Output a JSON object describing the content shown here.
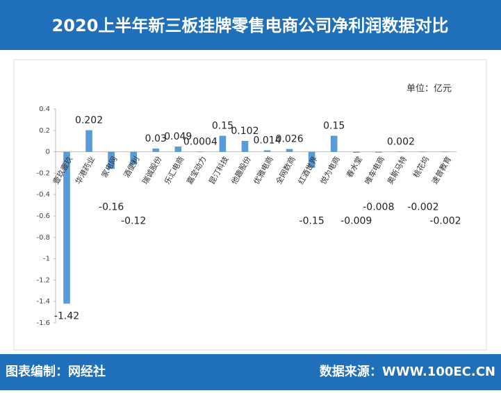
{
  "header": {
    "title": "2020上半年新三板挂牌零售电商公司净利润数据对比"
  },
  "footer": {
    "left": "图表编制：网经社",
    "right": "数据来源：WWW.100EC.CN"
  },
  "chart_data": {
    "type": "bar",
    "unit": "单位：亿元",
    "color": "#5b9bd5",
    "categories": [
      "壹玖壹玖",
      "华港药业",
      "家电网",
      "酒便利",
      "瑞诚股份",
      "乐汇电商",
      "嘉宝动力",
      "昆汀科技",
      "他趣股份",
      "优雅电商",
      "全网数商",
      "红酒世界",
      "悦为电商",
      "春水堂",
      "唯车电商",
      "奥斯马特",
      "桃花坞",
      "速普教育"
    ],
    "values": [
      -1.42,
      0.202,
      -0.16,
      -0.12,
      0.03,
      0.049,
      0.0004,
      0.15,
      0.102,
      0.014,
      0.026,
      -0.15,
      0.15,
      -0.009,
      -0.008,
      0.002,
      -0.002,
      -0.002
    ],
    "ylim": [
      -1.6,
      0.4
    ],
    "yticks": [
      0.4,
      0.2,
      0,
      -0.2,
      -0.4,
      -0.6,
      -0.8,
      -1,
      -1.2,
      -1.4,
      -1.6
    ]
  }
}
